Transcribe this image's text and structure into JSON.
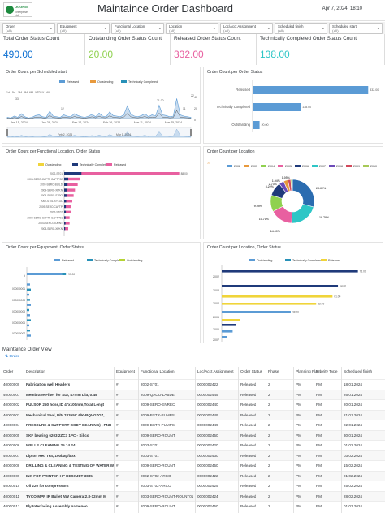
{
  "header": {
    "logo_top": "OGGHoli",
    "logo_sub": "Enterprise Ltd.",
    "title": "Maintaince Order Dashboard",
    "datetime": "Apr 7, 2024",
    "datetime2": "18:10"
  },
  "filters": [
    {
      "label": "Order",
      "value": "(All)"
    },
    {
      "label": "Equipment",
      "value": "(All)"
    },
    {
      "label": "Functional Location",
      "value": "(All)"
    },
    {
      "label": "Location",
      "value": "(All)"
    },
    {
      "label": "Loc/Acct Assignment",
      "value": "(All)"
    },
    {
      "label": "Scheduled finish",
      "value": "(All)"
    },
    {
      "label": "Scheduled start",
      "value": "(All)"
    }
  ],
  "kpis": [
    {
      "label": "Total Order Status Count",
      "value": "490.00",
      "color": "#0a6ed1"
    },
    {
      "label": "Outstanding Order Status Count",
      "value": "20.00",
      "color": "#8fd14f"
    },
    {
      "label": "Released Order Status Count",
      "value": "332.00",
      "color": "#e860a0"
    },
    {
      "label": "Technically Completed Order Status Count",
      "value": "138.00",
      "color": "#2ec6c6"
    }
  ],
  "panels": {
    "p1": "Order Count per Scheduled start",
    "p2": "Order Count per Order Status",
    "p3": "Order Count per Functional Location, Order Status",
    "p4": "Order Count per Location",
    "p5": "Order Count per Equipment, Order Status",
    "p6": "Order Count per Location, Order Status"
  },
  "p1": {
    "legend": [
      "Released",
      "Outstanding",
      "Technically Completed"
    ],
    "zoom": [
      "1d",
      "5d",
      "1M",
      "3M",
      "6M",
      "YTD",
      "1Y",
      "All"
    ],
    "xlabels": [
      "Jan 15, 2024",
      "Jan 29, 2024",
      "Feb 12, 2024",
      "Feb 26, 2024",
      "Mar 11, 2024",
      "Mar 25, 2024"
    ],
    "nav_labels": [
      "Feb 2, 2024",
      "Mar 1, 2024"
    ],
    "peak_labels": [
      "33",
      "12",
      "21.00",
      "11",
      "22"
    ],
    "y_labels": [
      "40",
      "20",
      "0"
    ]
  },
  "chart_data": [
    {
      "type": "bar",
      "title": "Order Count per Order Status",
      "categories": [
        "Released",
        "Technically Completed",
        "Outstanding"
      ],
      "values": [
        332,
        138,
        20
      ],
      "data_labels": [
        "332.00",
        "138.00",
        "20.00"
      ]
    },
    {
      "type": "bar",
      "title": "Order Count per Functional Location, Order Status",
      "legend": [
        "Outstanding",
        "Technically Completed",
        "Released"
      ],
      "categories": [
        "2002-ST01",
        "2003-SERO-CAFTP CAFTP02",
        "2003-SERO-BUILD",
        "2009-SERO-XPKN",
        "2009-SERO-STPO",
        "2002-ST01-XYLOL",
        "2009-SERO-CAFTP",
        "2002-ST02",
        "2003-SERO-CAFTP CAFTP01",
        "2003-SERO-ROUNT",
        "2003-SERO-XPKN"
      ],
      "series": [
        {
          "name": "Released",
          "values": [
            85,
            12,
            10,
            8,
            7,
            6,
            5,
            5,
            4,
            4,
            3
          ]
        }
      ],
      "data_labels": [
        "88.00"
      ]
    },
    {
      "type": "pie",
      "title": "Order Count per Location",
      "legend": [
        "2002",
        "2003",
        "2004",
        "2005",
        "2006",
        "2007",
        "2008",
        "2009",
        "2010"
      ],
      "values": [
        25.62,
        18.78,
        14.69,
        10.71,
        9.05,
        2.73,
        1.94,
        1.05,
        3.22
      ],
      "data_labels": [
        "25.62%",
        "18.78%",
        "14.69%",
        "10.71%",
        "9.05%",
        "2.73%",
        "1.94%",
        "1.05%",
        "3.22%"
      ]
    },
    {
      "type": "bar",
      "title": "Order Count per Equipment, Order Status",
      "legend": [
        "Released",
        "Technically Completed",
        "Outstanding"
      ],
      "categories": [
        "#",
        "000000001",
        "000000002",
        "000000003",
        "000000004",
        "000000005",
        "000000006",
        "000000007"
      ],
      "values": [
        95,
        2,
        1,
        1,
        1,
        1,
        1,
        1
      ],
      "data_labels": [
        "95.00"
      ]
    },
    {
      "type": "bar",
      "title": "Order Count per Location, Order Status",
      "legend": [
        "Outstanding",
        "Technically Completed",
        "Released"
      ],
      "categories": [
        "2002",
        "2003",
        "2004",
        "2005",
        "2006",
        "2007"
      ],
      "series": [
        {
          "name": "Released",
          "values": [
            75,
            64,
            61,
            52,
            38,
            10
          ]
        }
      ],
      "data_labels": [
        "75.00",
        "64.00",
        "61.00",
        "52.00",
        "38.00"
      ]
    }
  ],
  "table": {
    "title": "Maintaince Order View",
    "button": "Order",
    "headers": [
      "Order",
      "Description",
      "Equipment",
      "Functional Location",
      "Loc/Acct Assignment",
      "Order Status",
      "Phase",
      "Planning Plant",
      "Priority Type",
      "Scheduled finish"
    ],
    "rows": [
      [
        "40000000",
        "Fabrication well Headers",
        "#",
        "2002-ST01",
        "0000002422",
        "Released",
        "2",
        "PM",
        "PM",
        "18.01.2024"
      ],
      [
        "40000001",
        "Membrane Filter for SDI, 47mm Dia, 0.45",
        "#",
        "2009-QACO-LABDE",
        "0000002445",
        "Released",
        "2",
        "PM",
        "PM",
        "26.01.2024"
      ],
      [
        "40000002",
        "PULSOR 250 hose,ID 4\"x100mm,Total Lengt",
        "#",
        "2009-SERO-ENREC",
        "0000002440",
        "Released",
        "2",
        "PM",
        "PM",
        "20.01.2024"
      ],
      [
        "40000003",
        "Mechanical Seal, P/N 74355C.6/K-BQVG7G7,",
        "#",
        "2009-BSTR-PUMPS",
        "0000002449",
        "Released",
        "2",
        "PM",
        "PM",
        "21.01.2024"
      ],
      [
        "40000004",
        "PRESSURE & SUPPORT BODY BEARING) , PNR",
        "#",
        "2009-BSTR-PUMPS",
        "0000002449",
        "Released",
        "2",
        "PM",
        "PM",
        "22.01.2024"
      ],
      [
        "40000005",
        "SKF bearing 6203 2ZC3 1PC - Silico",
        "#",
        "2009-SERO-ROUNT",
        "0000002450",
        "Released",
        "2",
        "PM",
        "PM",
        "30.01.2024"
      ],
      [
        "40000006",
        "WELLS CLEANING 25.14.24",
        "#",
        "2003-ST01",
        "0000002420",
        "Released",
        "2",
        "PM",
        "PM",
        "01.02.2024"
      ],
      [
        "40000007",
        "Lipton Red Tea, 100bag/box",
        "#",
        "2003-ST01",
        "0000002430",
        "Released",
        "2",
        "PM",
        "PM",
        "03.02.2024"
      ],
      [
        "40000008",
        "DRILLING & CLEANING & TESTING OF WATER W",
        "#",
        "2009-SERO-ROUNT",
        "0000002450",
        "Released",
        "2",
        "PM",
        "PM",
        "15.02.2024"
      ],
      [
        "40000009",
        "INK FOR PRINTER HP DESKJET 3835",
        "#",
        "2002-ST02-ARCO",
        "0000002422",
        "Released",
        "2",
        "PM",
        "PM",
        "21.02.2024"
      ],
      [
        "40000010",
        "Oil 220 for compressors",
        "#",
        "2003-ST02-ARCO",
        "0000002425",
        "Released",
        "2",
        "PM",
        "PM",
        "25.02.2024"
      ],
      [
        "40000011",
        "TYCO-MPP IR Bullet NW Camera;2.8-12mm M",
        "#",
        "2003-SERO-ROUNT-ROUNT01",
        "0000002424",
        "Released",
        "2",
        "PM",
        "PM",
        "28.02.2024"
      ],
      [
        "40000012",
        "Fly Interfacing Assembly nameneo",
        "#",
        "2009-SERO-ROUNT",
        "0000002450",
        "Released",
        "2",
        "PM",
        "PM",
        "01.03.2024"
      ]
    ]
  },
  "colors": {
    "released": "#5b9bd5",
    "tech": "#2891b8",
    "outstanding": "#b5d334",
    "pink": "#e860a0",
    "navy": "#1f3a7a",
    "yellow": "#f0d43a"
  }
}
